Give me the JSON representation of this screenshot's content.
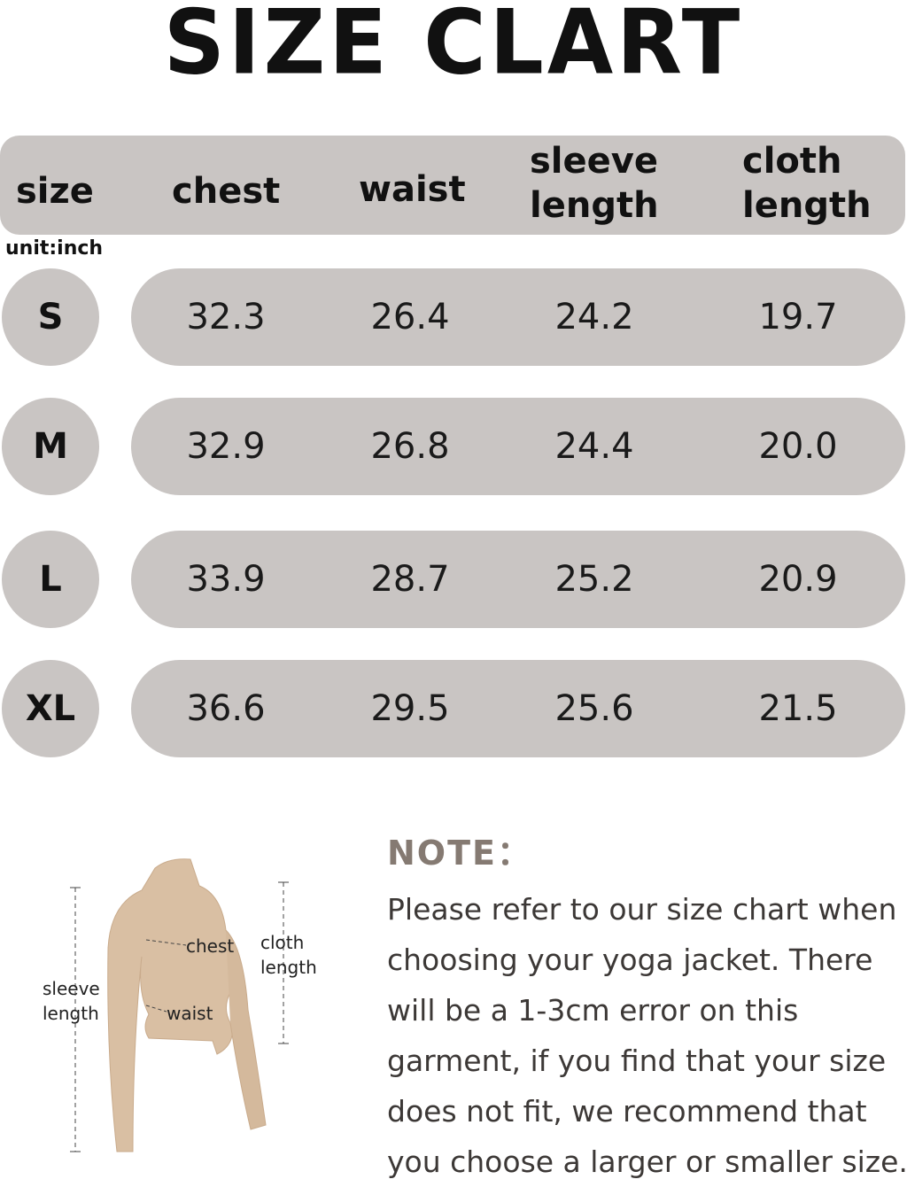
{
  "title": "SIZE CLART",
  "unit": "unit:inch",
  "headers": [
    "size",
    "chest",
    "waist",
    "sleeve length",
    "cloth length"
  ],
  "rows": [
    {
      "size": "S",
      "chest": "32.3",
      "waist": "26.4",
      "sleeve": "24.2",
      "cloth": "19.7"
    },
    {
      "size": "M",
      "chest": "32.9",
      "waist": "26.8",
      "sleeve": "24.4",
      "cloth": "20.0"
    },
    {
      "size": "L",
      "chest": "33.9",
      "waist": "28.7",
      "sleeve": "25.2",
      "cloth": "20.9"
    },
    {
      "size": "XL",
      "chest": "36.6",
      "waist": "29.5",
      "sleeve": "25.6",
      "cloth": "21.5"
    }
  ],
  "diagram": {
    "chest": "chest",
    "waist": "waist",
    "sleeve": "sleeve length",
    "cloth": "cloth length"
  },
  "note": {
    "title": "NOTE：",
    "text": "Please refer to our size chart when choosing your yoga jacket. There will be a 1-3cm error on this garment, if you find that your size does not fit, we recommend that you choose a larger or smaller size."
  },
  "colors": {
    "row_bg": "#c9c5c3",
    "jacket": "#d9bfa3",
    "note_title": "#857a72"
  }
}
